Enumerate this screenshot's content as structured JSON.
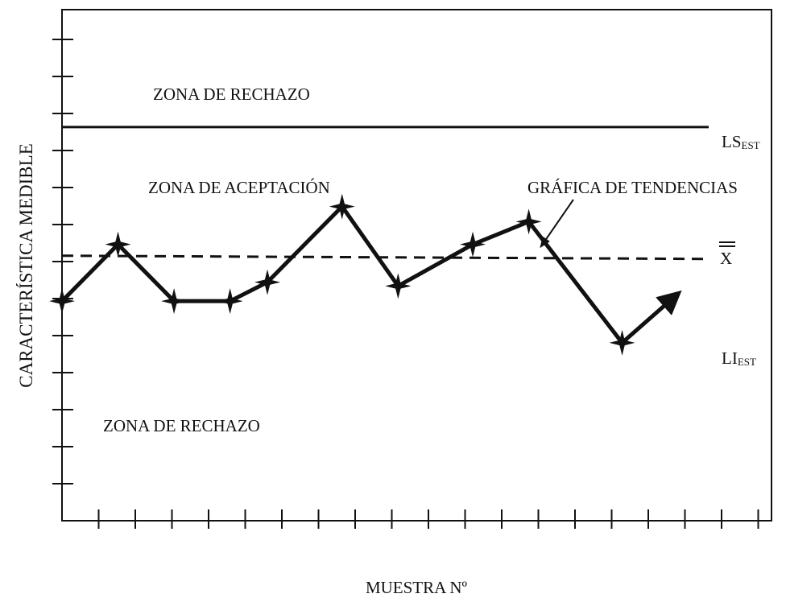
{
  "chart_data": {
    "type": "line",
    "title": "",
    "xlabel": "MUESTRA Nº",
    "ylabel": "CARACTERÍSTICA MEDIBLE",
    "x": [
      0,
      1.5,
      3,
      4.5,
      5.5,
      7.5,
      9,
      11,
      12.5,
      15,
      16.5
    ],
    "y": [
      5.8,
      7.3,
      5.8,
      5.8,
      6.3,
      8.3,
      6.2,
      7.3,
      7.9,
      4.7,
      6.0
    ],
    "xlim": [
      0,
      19
    ],
    "ylim": [
      0,
      13.5
    ],
    "x_ticks": 19,
    "y_ticks": 13,
    "end_arrow": true,
    "grid": false,
    "reference_lines": [
      {
        "id": "ls",
        "value": 10.4,
        "style": "solid",
        "label": "LS",
        "label_sub": "EST"
      },
      {
        "id": "xbar",
        "value": 7.0,
        "style": "dashed",
        "label": "X",
        "overline": "double"
      }
    ],
    "limit_labels": [
      {
        "id": "li",
        "label": "LI",
        "label_sub": "EST",
        "y_value": 4.3
      }
    ],
    "annotations": {
      "zona_rechazo_top": "ZONA DE RECHAZO",
      "zona_aceptacion": "ZONA DE ACEPTACIÓN",
      "zona_rechazo_bottom": "ZONA DE RECHAZO",
      "grafica_tendencias": "GRÁFICA DE TENDENCIAS"
    },
    "colors": {
      "ink": "#111111",
      "background": "#ffffff"
    }
  }
}
